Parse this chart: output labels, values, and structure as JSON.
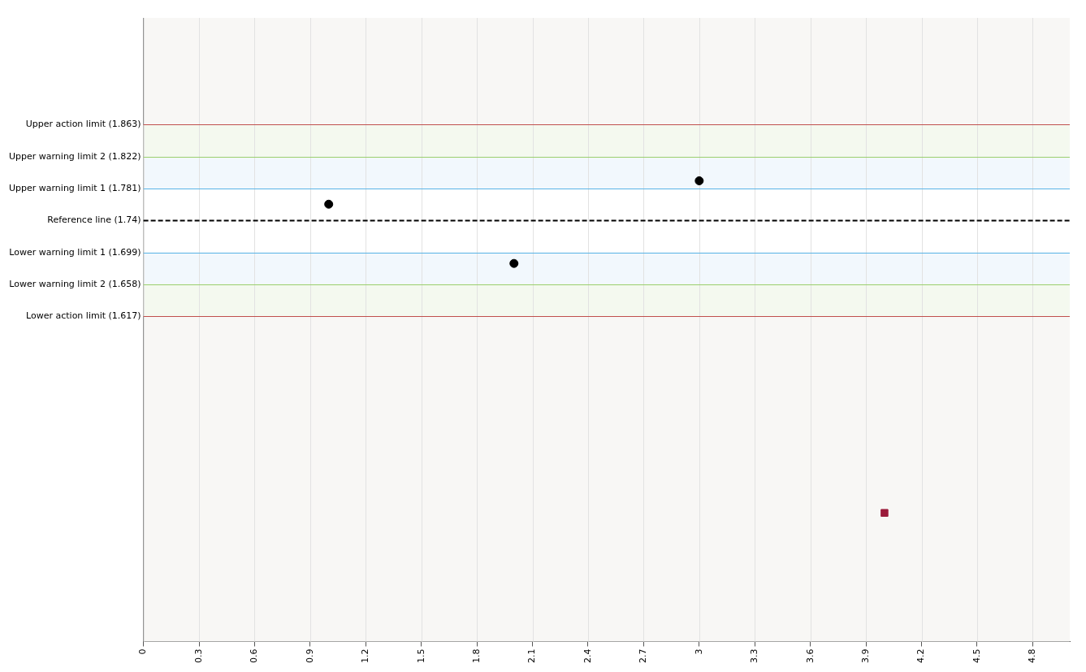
{
  "chart_data": {
    "type": "scatter",
    "xlim": [
      0,
      5
    ],
    "xticks": [
      0,
      0.3,
      0.6,
      0.9,
      1.2,
      1.5,
      1.8,
      2.1,
      2.4,
      2.7,
      3,
      3.3,
      3.6,
      3.9,
      4.2,
      4.5,
      4.8
    ],
    "ylim": [
      1.2,
      2.0
    ],
    "yticks": [
      {
        "value": 1.863,
        "label": "Upper action limit (1.863)"
      },
      {
        "value": 1.822,
        "label": "Upper warning limit 2 (1.822)"
      },
      {
        "value": 1.781,
        "label": "Upper warning limit 1 (1.781)"
      },
      {
        "value": 1.74,
        "label": "Reference line (1.74)"
      },
      {
        "value": 1.699,
        "label": "Lower warning limit 1 (1.699)"
      },
      {
        "value": 1.658,
        "label": "Lower warning limit 2 (1.658)"
      },
      {
        "value": 1.617,
        "label": "Lower action limit (1.617)"
      }
    ],
    "grid": "x",
    "legend": false,
    "series": [
      {
        "marker": "circle",
        "color": "#000000",
        "x": [
          1,
          2,
          3
        ],
        "values": [
          1.761,
          1.685,
          1.791
        ]
      },
      {
        "marker": "square",
        "color": "#9b1b3a",
        "x": [
          4
        ],
        "values": [
          1.365
        ]
      }
    ],
    "bands": [
      {
        "axis": "y",
        "from": 1.822,
        "to": 1.863,
        "color": "#f4f9ef"
      },
      {
        "axis": "y",
        "from": 1.781,
        "to": 1.822,
        "color": "#f2f8fd"
      },
      {
        "axis": "y",
        "from": 1.699,
        "to": 1.781,
        "color": "#ffffff"
      },
      {
        "axis": "y",
        "from": 1.658,
        "to": 1.699,
        "color": "#f2f8fd"
      },
      {
        "axis": "y",
        "from": 1.617,
        "to": 1.658,
        "color": "#f4f9ef"
      }
    ],
    "ref_lines": [
      {
        "axis": "y",
        "value": 1.863,
        "color": "#c0504d",
        "line_style": "solid"
      },
      {
        "axis": "y",
        "value": 1.822,
        "color": "#9bcf6b",
        "line_style": "solid"
      },
      {
        "axis": "y",
        "value": 1.781,
        "color": "#5ab4e6",
        "line_style": "solid"
      },
      {
        "axis": "y",
        "value": 1.74,
        "color": "#000000",
        "line_style": "dashed"
      },
      {
        "axis": "y",
        "value": 1.699,
        "color": "#5ab4e6",
        "line_style": "solid"
      },
      {
        "axis": "y",
        "value": 1.658,
        "color": "#9bcf6b",
        "line_style": "solid"
      },
      {
        "axis": "y",
        "value": 1.617,
        "color": "#c0504d",
        "line_style": "solid"
      }
    ]
  }
}
